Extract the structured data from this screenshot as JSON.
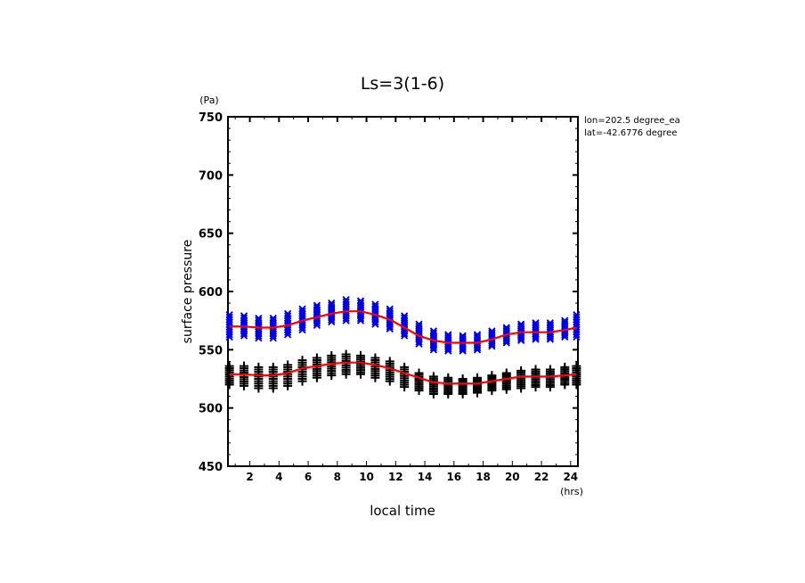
{
  "chart_data": {
    "type": "scatter",
    "title": "Ls=3(1-6)",
    "xlabel": "local time",
    "xunit": "(hrs)",
    "ylabel": "surface pressure",
    "yunit": "(Pa)",
    "xlim": [
      0.5,
      24.5
    ],
    "ylim": [
      450,
      750
    ],
    "xticks": [
      2,
      4,
      6,
      8,
      10,
      12,
      14,
      16,
      18,
      20,
      22,
      24
    ],
    "yticks": [
      450,
      500,
      550,
      600,
      650,
      700,
      750
    ],
    "annotations": [
      "lon=202.5 degree_ea",
      "lat=-42.6776 degree"
    ],
    "grid": false,
    "legend": "none",
    "colors": {
      "blue_series": "#0000e0",
      "black_series": "#000000",
      "mean_line": "#ff0000"
    },
    "x": [
      0.6,
      1.6,
      2.6,
      3.6,
      4.6,
      5.6,
      6.6,
      7.6,
      8.6,
      9.6,
      10.6,
      11.6,
      12.6,
      13.6,
      14.6,
      15.6,
      16.6,
      17.6,
      18.6,
      19.6,
      20.6,
      21.6,
      22.6,
      23.6,
      24.4
    ],
    "series": [
      {
        "name": "blue x markers",
        "marker": "x",
        "spread_min": [
          561,
          562,
          560,
          560,
          563,
          567,
          571,
          574,
          575,
          575,
          572,
          568,
          562,
          555,
          550,
          549,
          549,
          550,
          553,
          556,
          558,
          559,
          559,
          561,
          561
        ],
        "spread_max": [
          580,
          579,
          577,
          577,
          581,
          585,
          588,
          590,
          593,
          592,
          589,
          585,
          579,
          572,
          566,
          563,
          562,
          563,
          566,
          569,
          572,
          573,
          573,
          575,
          580
        ],
        "mean": [
          570,
          570,
          569,
          569,
          571,
          575,
          578,
          581,
          583,
          583,
          580,
          576,
          569,
          562,
          558,
          556,
          556,
          556,
          559,
          563,
          565,
          565,
          565,
          567,
          569
        ]
      },
      {
        "name": "black + markers",
        "marker": "+",
        "spread_min": [
          520,
          519,
          517,
          517,
          519,
          523,
          526,
          528,
          529,
          529,
          526,
          523,
          518,
          515,
          512,
          512,
          512,
          513,
          515,
          516,
          517,
          518,
          518,
          520,
          520
        ],
        "spread_max": [
          536,
          536,
          535,
          535,
          537,
          541,
          543,
          545,
          546,
          545,
          543,
          540,
          535,
          530,
          527,
          526,
          525,
          526,
          528,
          530,
          532,
          533,
          533,
          535,
          536
        ],
        "mean": [
          529,
          529,
          528,
          528,
          530,
          534,
          536,
          538,
          539,
          539,
          537,
          534,
          530,
          526,
          522,
          521,
          521,
          521,
          523,
          525,
          527,
          527,
          527,
          528,
          529
        ]
      }
    ]
  }
}
